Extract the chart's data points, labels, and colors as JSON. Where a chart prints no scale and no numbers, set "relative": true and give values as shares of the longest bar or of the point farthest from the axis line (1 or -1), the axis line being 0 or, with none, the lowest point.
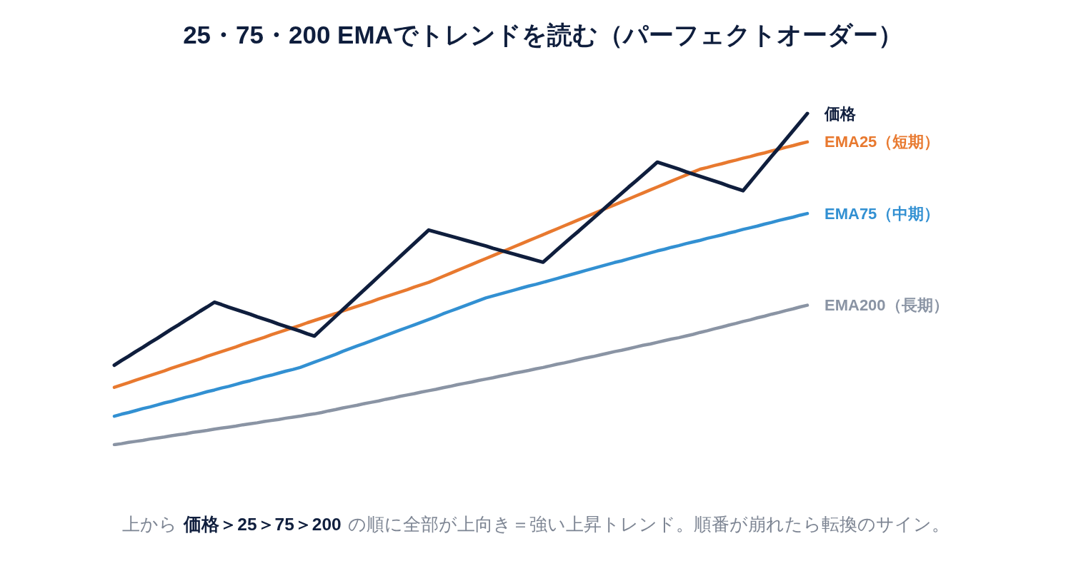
{
  "chart_data": {
    "type": "line",
    "title": "25・75・200 EMAでトレンドを読む（パーフェクトオーダー）",
    "relative": true,
    "marker": "none",
    "line_style": "solid",
    "categories": [
      null,
      null,
      null,
      null,
      null,
      null,
      null,
      null,
      null,
      null,
      null,
      null,
      null,
      null,
      null,
      null,
      null,
      null,
      null,
      null,
      null,
      null,
      null,
      null,
      null,
      null,
      null,
      null,
      null,
      null,
      null,
      null,
      null,
      null,
      null,
      null,
      null,
      null,
      null,
      null,
      null,
      null,
      null,
      null,
      null,
      null,
      null,
      null,
      null,
      null,
      null,
      null,
      null,
      null,
      null,
      null,
      null,
      null,
      null,
      null,
      null,
      null,
      null,
      null,
      null,
      null,
      null,
      null,
      null,
      null,
      null,
      null,
      null,
      null,
      null,
      null,
      null,
      null,
      null,
      null,
      null,
      null,
      null,
      null,
      null,
      null,
      null,
      null,
      null,
      null,
      null,
      null,
      null,
      null,
      null,
      null,
      null,
      null
    ],
    "series": [
      {
        "name": "価格",
        "color": "#0f1e3d",
        "values": [
          0.24,
          0.254,
          0.267,
          0.281,
          0.294,
          0.308,
          0.321,
          0.335,
          0.349,
          0.362,
          0.376,
          0.389,
          0.403,
          0.416,
          0.43,
          0.423,
          0.415,
          0.408,
          0.401,
          0.394,
          0.386,
          0.379,
          0.372,
          0.364,
          0.357,
          0.35,
          0.343,
          0.335,
          0.328,
          0.348,
          0.368,
          0.388,
          0.408,
          0.428,
          0.448,
          0.468,
          0.488,
          0.508,
          0.528,
          0.548,
          0.568,
          0.588,
          0.608,
          0.628,
          0.648,
          0.642,
          0.636,
          0.63,
          0.624,
          0.618,
          0.612,
          0.606,
          0.6,
          0.593,
          0.587,
          0.581,
          0.575,
          0.569,
          0.563,
          0.557,
          0.551,
          0.57,
          0.589,
          0.608,
          0.627,
          0.645,
          0.664,
          0.683,
          0.702,
          0.721,
          0.74,
          0.759,
          0.778,
          0.796,
          0.815,
          0.834,
          0.853,
          0.846,
          0.839,
          0.832,
          0.824,
          0.817,
          0.81,
          0.803,
          0.796,
          0.789,
          0.781,
          0.774,
          0.767,
          0.793,
          0.819,
          0.845,
          0.871,
          0.896,
          0.922,
          0.948,
          0.974,
          1
        ]
      },
      {
        "name": "EMA25（短期）",
        "color": "#e8792f",
        "values": [
          0.173,
          0.18,
          0.187,
          0.195,
          0.202,
          0.209,
          0.216,
          0.223,
          0.231,
          0.238,
          0.245,
          0.252,
          0.259,
          0.267,
          0.274,
          0.281,
          0.288,
          0.295,
          0.303,
          0.31,
          0.317,
          0.324,
          0.332,
          0.339,
          0.346,
          0.353,
          0.36,
          0.368,
          0.375,
          0.382,
          0.389,
          0.396,
          0.404,
          0.411,
          0.418,
          0.425,
          0.432,
          0.44,
          0.447,
          0.454,
          0.461,
          0.468,
          0.476,
          0.483,
          0.49,
          0.499,
          0.508,
          0.517,
          0.526,
          0.535,
          0.544,
          0.553,
          0.562,
          0.571,
          0.58,
          0.589,
          0.598,
          0.607,
          0.616,
          0.625,
          0.634,
          0.643,
          0.652,
          0.661,
          0.67,
          0.679,
          0.688,
          0.697,
          0.706,
          0.715,
          0.724,
          0.733,
          0.742,
          0.751,
          0.76,
          0.769,
          0.778,
          0.787,
          0.796,
          0.805,
          0.814,
          0.823,
          0.832,
          0.837,
          0.843,
          0.848,
          0.854,
          0.859,
          0.865,
          0.87,
          0.876,
          0.881,
          0.887,
          0.892,
          0.898,
          0.903,
          0.909,
          0.914
        ]
      },
      {
        "name": "EMA75（中期）",
        "color": "#3290d2",
        "values": [
          0.086,
          0.092,
          0.097,
          0.103,
          0.109,
          0.114,
          0.12,
          0.126,
          0.131,
          0.137,
          0.143,
          0.148,
          0.154,
          0.16,
          0.165,
          0.171,
          0.176,
          0.182,
          0.188,
          0.193,
          0.199,
          0.205,
          0.21,
          0.216,
          0.222,
          0.227,
          0.233,
          0.241,
          0.249,
          0.257,
          0.265,
          0.273,
          0.282,
          0.29,
          0.298,
          0.306,
          0.314,
          0.322,
          0.33,
          0.338,
          0.346,
          0.354,
          0.362,
          0.37,
          0.378,
          0.386,
          0.395,
          0.403,
          0.411,
          0.419,
          0.427,
          0.435,
          0.443,
          0.449,
          0.455,
          0.461,
          0.467,
          0.473,
          0.479,
          0.484,
          0.49,
          0.496,
          0.502,
          0.508,
          0.514,
          0.52,
          0.526,
          0.532,
          0.538,
          0.544,
          0.55,
          0.555,
          0.561,
          0.567,
          0.573,
          0.579,
          0.585,
          0.59,
          0.596,
          0.601,
          0.607,
          0.612,
          0.617,
          0.623,
          0.628,
          0.633,
          0.639,
          0.644,
          0.65,
          0.655,
          0.66,
          0.666,
          0.671,
          0.677,
          0.682,
          0.687,
          0.693,
          0.698
        ]
      },
      {
        "name": "EMA200（長期）",
        "color": "#8a94a4",
        "values": [
          0,
          0.003,
          0.007,
          0.01,
          0.013,
          0.017,
          0.02,
          0.023,
          0.027,
          0.03,
          0.033,
          0.037,
          0.04,
          0.043,
          0.047,
          0.05,
          0.053,
          0.056,
          0.06,
          0.063,
          0.066,
          0.07,
          0.073,
          0.076,
          0.08,
          0.083,
          0.086,
          0.09,
          0.093,
          0.097,
          0.102,
          0.106,
          0.111,
          0.115,
          0.119,
          0.124,
          0.128,
          0.132,
          0.137,
          0.141,
          0.146,
          0.15,
          0.154,
          0.159,
          0.163,
          0.167,
          0.172,
          0.176,
          0.181,
          0.185,
          0.189,
          0.194,
          0.198,
          0.202,
          0.207,
          0.211,
          0.216,
          0.22,
          0.224,
          0.229,
          0.233,
          0.238,
          0.243,
          0.247,
          0.252,
          0.257,
          0.262,
          0.266,
          0.271,
          0.276,
          0.281,
          0.285,
          0.29,
          0.295,
          0.3,
          0.304,
          0.309,
          0.314,
          0.319,
          0.323,
          0.328,
          0.333,
          0.339,
          0.344,
          0.35,
          0.355,
          0.361,
          0.366,
          0.372,
          0.377,
          0.383,
          0.388,
          0.394,
          0.399,
          0.405,
          0.41,
          0.416,
          0.421
        ]
      }
    ],
    "annotations": [
      "上から",
      "価格＞25＞75＞200",
      "の順に全部が上向き＝強い上昇トレンド。順番が崩れたら転換のサイン。"
    ]
  }
}
